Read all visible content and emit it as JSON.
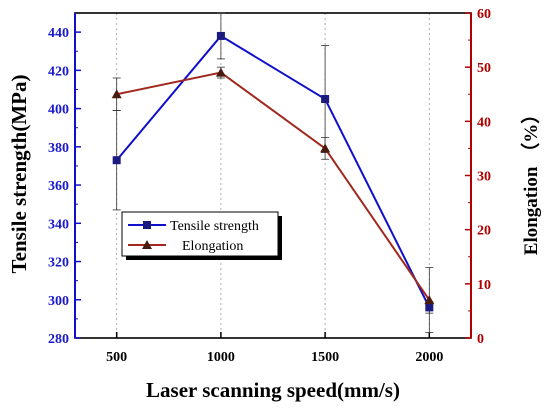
{
  "chart_data": {
    "type": "line",
    "xlabel": "Laser scanning speed(mm/s)",
    "ylabel_left": "Tensile strength(MPa)",
    "ylabel_right": "Elongation （%）",
    "x": [
      500,
      1000,
      1500,
      2000
    ],
    "x_ticks": [
      "500",
      "1000",
      "1500",
      "2000"
    ],
    "xlim": [
      300,
      2200
    ],
    "ylim_left": [
      280,
      450
    ],
    "ylim_right": [
      0,
      60
    ],
    "y_ticks_left": [
      "280",
      "300",
      "320",
      "340",
      "360",
      "380",
      "400",
      "420",
      "440"
    ],
    "y_ticks_right": [
      "0",
      "10",
      "20",
      "30",
      "40",
      "50",
      "60"
    ],
    "grid": "vertical dotted",
    "legend_position": "center-left",
    "series": [
      {
        "name": "Tensile strength",
        "axis": "left",
        "marker": "square",
        "color": "#1010cc",
        "values": [
          373,
          438,
          405,
          296
        ],
        "error": [
          26,
          12,
          28,
          3
        ]
      },
      {
        "name": "Elongation",
        "axis": "right",
        "marker": "triangle",
        "color": "#a0281e",
        "values": [
          45,
          49,
          35,
          7
        ],
        "error": [
          3,
          1,
          2,
          6
        ]
      }
    ]
  }
}
